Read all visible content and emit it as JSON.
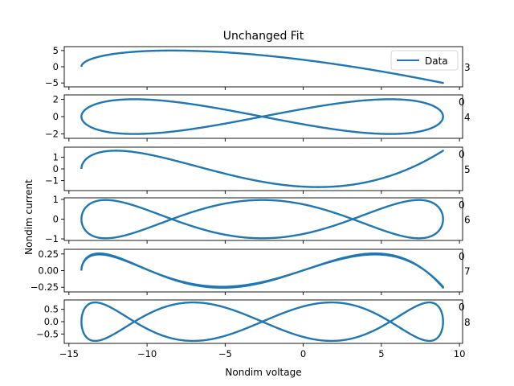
{
  "figure": {
    "title": "Unchanged Fit",
    "xlabel": "Nondim voltage",
    "ylabel": "Nondim current"
  },
  "colors": {
    "series": "#1f77b4",
    "axes": "#000000",
    "background": "#ffffff"
  },
  "chart_data": [
    {
      "type": "line",
      "right_label": "3",
      "right_top_label": "",
      "legend": "Data",
      "legend_position": "top-right",
      "xlim": [
        -15.3,
        10.2
      ],
      "ylim": [
        -6.2,
        6.2
      ],
      "yticks": [
        -5,
        0,
        5
      ],
      "yticklabels": [
        "−5",
        "0",
        "5"
      ],
      "xticks": [],
      "xticklabels": [],
      "curve": {
        "x_min": -14.2,
        "x_max": 8.95,
        "amplitude": 5.0,
        "harmonic": 3,
        "phase": 0.0,
        "thickness": 1
      }
    },
    {
      "type": "line",
      "right_label": "4",
      "right_top_label": "0",
      "legend": "",
      "xlim": [
        -15.3,
        10.2
      ],
      "ylim": [
        -2.5,
        2.5
      ],
      "yticks": [
        -2,
        0,
        2
      ],
      "yticklabels": [
        "−2",
        "0",
        "2"
      ],
      "xticks": [],
      "xticklabels": [],
      "curve": {
        "x_min": -14.2,
        "x_max": 8.95,
        "amplitude": 2.0,
        "harmonic": 4,
        "phase": 0.0,
        "thickness": 1
      }
    },
    {
      "type": "line",
      "right_label": "5",
      "right_top_label": "0",
      "legend": "",
      "xlim": [
        -15.3,
        10.2
      ],
      "ylim": [
        -1.85,
        1.85
      ],
      "yticks": [
        -1,
        0,
        1
      ],
      "yticklabels": [
        "−1",
        "0",
        "1"
      ],
      "xticks": [],
      "xticklabels": [],
      "curve": {
        "x_min": -14.2,
        "x_max": 8.95,
        "amplitude": 1.55,
        "harmonic": 5,
        "phase": 0.0,
        "thickness": 1
      }
    },
    {
      "type": "line",
      "right_label": "6",
      "right_top_label": "0",
      "legend": "",
      "xlim": [
        -15.3,
        10.2
      ],
      "ylim": [
        -1.08,
        1.08
      ],
      "yticks": [
        -1,
        0,
        1
      ],
      "yticklabels": [
        "−1",
        "0",
        "1"
      ],
      "xticks": [],
      "xticklabels": [],
      "curve": {
        "x_min": -14.2,
        "x_max": 8.95,
        "amplitude": 0.97,
        "harmonic": 6,
        "phase": 0.0,
        "thickness": 1
      }
    },
    {
      "type": "line",
      "right_label": "7",
      "right_top_label": "0",
      "legend": "",
      "xlim": [
        -15.3,
        10.2
      ],
      "ylim": [
        -0.32,
        0.32
      ],
      "yticks": [
        -0.25,
        0,
        0.25
      ],
      "yticklabels": [
        "−0.25",
        "0.00",
        "0.25"
      ],
      "xticks": [],
      "xticklabels": [],
      "curve": {
        "x_min": -14.2,
        "x_max": 8.95,
        "amplitude": 0.25,
        "harmonic": 7,
        "phase": 0.0,
        "thickness": 4
      }
    },
    {
      "type": "line",
      "right_label": "8",
      "right_top_label": "0",
      "legend": "",
      "xlim": [
        -15.3,
        10.2
      ],
      "ylim": [
        -0.88,
        0.88
      ],
      "yticks": [
        -0.5,
        0,
        0.5
      ],
      "yticklabels": [
        "−0.5",
        "0.0",
        "0.5"
      ],
      "xticks": [
        -15,
        -10,
        -5,
        0,
        5,
        10
      ],
      "xticklabels": [
        "−15",
        "−10",
        "−5",
        "0",
        "5",
        "10"
      ],
      "curve": {
        "x_min": -14.2,
        "x_max": 8.95,
        "amplitude": 0.78,
        "harmonic": 8,
        "phase": 0.0,
        "thickness": 1
      }
    }
  ]
}
